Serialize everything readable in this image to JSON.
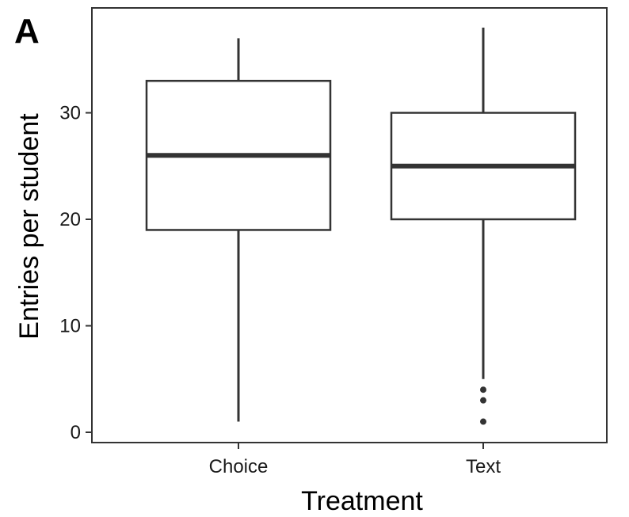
{
  "panel_label": "A",
  "chart_data": {
    "type": "box",
    "xlabel": "Treatment",
    "ylabel": "Entries per student",
    "ylim": [
      -1,
      39
    ],
    "yticks": [
      0,
      10,
      20,
      30
    ],
    "ytick_labels": [
      "0",
      "10",
      "20",
      "30"
    ],
    "grid": false,
    "categories": [
      "Choice",
      "Text"
    ],
    "boxes": [
      {
        "category": "Choice",
        "whisker_low": 1,
        "q1": 19,
        "median": 26,
        "q3": 33,
        "whisker_high": 37,
        "outliers": []
      },
      {
        "category": "Text",
        "whisker_low": 5,
        "q1": 20,
        "median": 25,
        "q3": 30,
        "whisker_high": 38,
        "outliers": [
          4,
          3,
          1
        ]
      }
    ],
    "colors": {
      "box_fill": "#ffffff",
      "box_stroke": "#333333",
      "median": "#333333",
      "axis": "#333333"
    }
  }
}
